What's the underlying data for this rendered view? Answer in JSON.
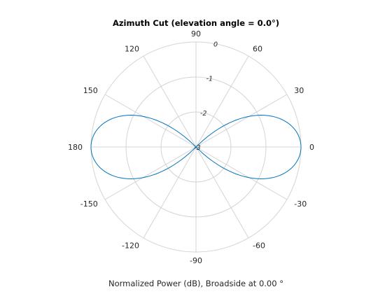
{
  "chart_data": {
    "type": "polar-line",
    "title": "Azimuth Cut (elevation angle = 0.0°)",
    "xlabel": "Normalized Power (dB), Broadside at 0.00 °",
    "angle_ticks": [
      "0",
      "30",
      "60",
      "90",
      "120",
      "150",
      "180",
      "-150",
      "-120",
      "-90",
      "-60",
      "-30"
    ],
    "angle_tick_values_deg": [
      0,
      30,
      60,
      90,
      120,
      150,
      180,
      210,
      240,
      270,
      300,
      330
    ],
    "radial_ticks": [
      "0",
      "-1",
      "-2",
      "-3"
    ],
    "radial_tick_values": [
      0,
      -1,
      -2,
      -3
    ],
    "rlim": [
      -3,
      0
    ],
    "grid": true,
    "series": [
      {
        "pattern": "cos^2(azimuth), minimum at -3 dB near ±90°",
        "color": "#0072BD",
        "az_deg": [
          0,
          15,
          30,
          45,
          60,
          75,
          80,
          85,
          88,
          90
        ],
        "power_db": [
          0.0,
          -0.15,
          -0.62,
          -1.5,
          -2.0,
          -2.4,
          -2.6,
          -2.85,
          -2.97,
          -3.0
        ]
      }
    ]
  }
}
